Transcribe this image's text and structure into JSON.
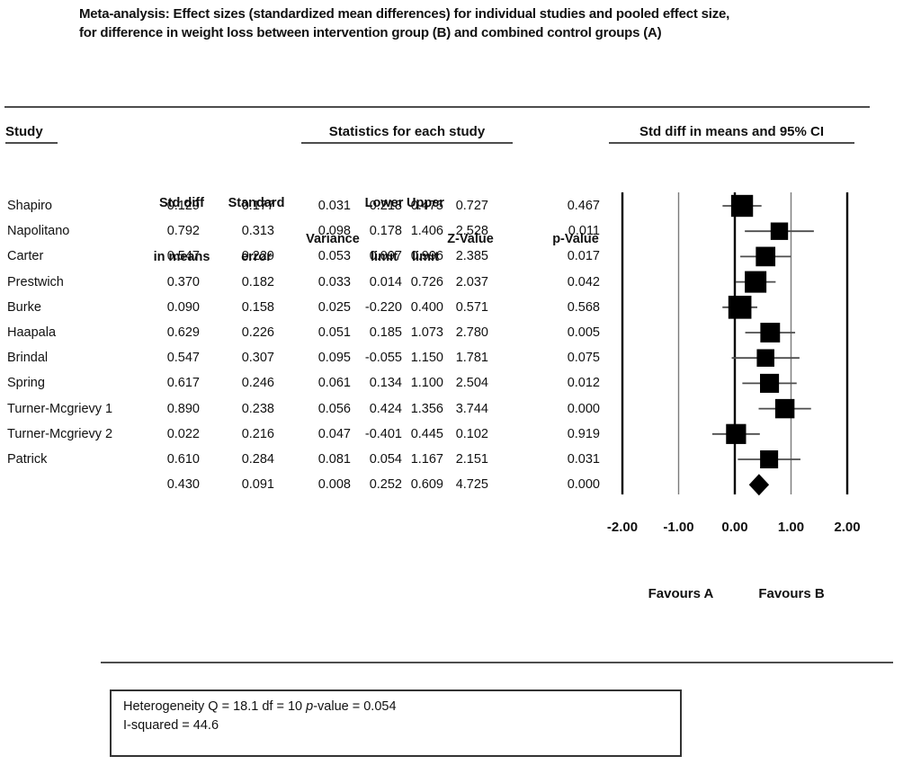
{
  "title": {
    "line1": "Meta-analysis: Effect sizes (standardized mean differences) for individual studies and pooled effect size,",
    "line2": "for difference in weight loss between intervention group (B) and combined control groups (A)"
  },
  "table": {
    "group_headers": {
      "study": "Study",
      "stats": "Statistics for each study",
      "plot": "Std diff in means and 95% CI"
    },
    "columns": [
      {
        "key": "std_diff",
        "line1": "Std diff",
        "line2": "in means"
      },
      {
        "key": "std_err",
        "line1": "Standard",
        "line2": "error"
      },
      {
        "key": "variance",
        "line1": "",
        "line2": "Variance"
      },
      {
        "key": "lower",
        "line1": "Lower",
        "line2": "limit"
      },
      {
        "key": "upper",
        "line1": "Upper",
        "line2": "limit"
      },
      {
        "key": "z",
        "line1": "",
        "line2": "Z-Value"
      },
      {
        "key": "p",
        "line1": "",
        "line2": "p-Value"
      }
    ]
  },
  "chart_data": {
    "type": "forest",
    "xlabel_ticks": [
      "-2.00",
      "-1.00",
      "0.00",
      "1.00",
      "2.00"
    ],
    "x_tick_values": [
      -2,
      -1,
      0,
      1,
      2
    ],
    "xlim": [
      -2,
      2
    ],
    "studies": [
      {
        "name": "Shapiro",
        "std_diff": 0.129,
        "std_err": 0.177,
        "variance": 0.031,
        "lower": -0.218,
        "upper": 0.475,
        "z": 0.727,
        "p": 0.467
      },
      {
        "name": "Napolitano",
        "std_diff": 0.792,
        "std_err": 0.313,
        "variance": 0.098,
        "lower": 0.178,
        "upper": 1.406,
        "z": 2.528,
        "p": 0.011
      },
      {
        "name": "Carter",
        "std_diff": 0.547,
        "std_err": 0.229,
        "variance": 0.053,
        "lower": 0.097,
        "upper": 0.996,
        "z": 2.385,
        "p": 0.017
      },
      {
        "name": "Prestwich",
        "std_diff": 0.37,
        "std_err": 0.182,
        "variance": 0.033,
        "lower": 0.014,
        "upper": 0.726,
        "z": 2.037,
        "p": 0.042
      },
      {
        "name": "Burke",
        "std_diff": 0.09,
        "std_err": 0.158,
        "variance": 0.025,
        "lower": -0.22,
        "upper": 0.4,
        "z": 0.571,
        "p": 0.568
      },
      {
        "name": "Haapala",
        "std_diff": 0.629,
        "std_err": 0.226,
        "variance": 0.051,
        "lower": 0.185,
        "upper": 1.073,
        "z": 2.78,
        "p": 0.005
      },
      {
        "name": "Brindal",
        "std_diff": 0.547,
        "std_err": 0.307,
        "variance": 0.095,
        "lower": -0.055,
        "upper": 1.15,
        "z": 1.781,
        "p": 0.075
      },
      {
        "name": "Spring",
        "std_diff": 0.617,
        "std_err": 0.246,
        "variance": 0.061,
        "lower": 0.134,
        "upper": 1.1,
        "z": 2.504,
        "p": 0.012
      },
      {
        "name": "Turner-Mcgrievy 1",
        "std_diff": 0.89,
        "std_err": 0.238,
        "variance": 0.056,
        "lower": 0.424,
        "upper": 1.356,
        "z": 3.744,
        "p": 0.0
      },
      {
        "name": "Turner-Mcgrievy 2",
        "std_diff": 0.022,
        "std_err": 0.216,
        "variance": 0.047,
        "lower": -0.401,
        "upper": 0.445,
        "z": 0.102,
        "p": 0.919
      },
      {
        "name": "Patrick",
        "std_diff": 0.61,
        "std_err": 0.284,
        "variance": 0.081,
        "lower": 0.054,
        "upper": 1.167,
        "z": 2.151,
        "p": 0.031
      }
    ],
    "pooled": {
      "name": "",
      "std_diff": 0.43,
      "std_err": 0.091,
      "variance": 0.008,
      "lower": 0.252,
      "upper": 0.609,
      "z": 4.725,
      "p": 0.0
    },
    "footer_labels": {
      "favours_a": "Favours A",
      "favours_b": "Favours B"
    }
  },
  "heterogeneity": {
    "line1_pre": "Heterogeneity Q = 18.1 df = 10 ",
    "line1_italic": "p",
    "line1_post": "-value = 0.054",
    "line2": "I-squared = 44.6"
  },
  "colors": {
    "marker": "#000000",
    "ci_line": "#4d4d4d",
    "grid_major": "#000000",
    "grid_minor": "#7a7a7a",
    "text": "#111111",
    "background": "#ffffff"
  }
}
